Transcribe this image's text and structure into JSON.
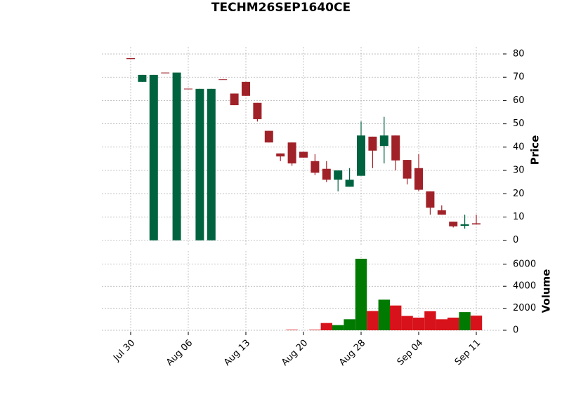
{
  "chart_data": {
    "type": "candlestick",
    "title": "TECHM26SEP1640CE",
    "categories": [
      "Jul 30",
      null,
      null,
      null,
      null,
      "Aug 06",
      null,
      null,
      null,
      null,
      "Aug 13",
      null,
      null,
      null,
      null,
      "Aug 20",
      null,
      null,
      null,
      null,
      "Aug 28",
      null,
      null,
      null,
      null,
      "Sep 04",
      null,
      null,
      null,
      null,
      "Sep 11"
    ],
    "open": [
      78.2,
      68,
      0,
      72,
      0,
      65.1,
      0,
      0,
      69.1,
      63,
      68,
      59,
      47,
      37.3,
      42,
      38,
      34,
      30.7,
      26,
      23,
      27.7,
      44.5,
      40.5,
      45,
      34.5,
      31,
      21,
      12.9,
      8,
      6.2,
      7.3
    ],
    "high": [
      78.2,
      71,
      71,
      72,
      72,
      65.1,
      65,
      65,
      69.1,
      63,
      68,
      59,
      47,
      37.3,
      42,
      38,
      37,
      34,
      30,
      31,
      51,
      44.5,
      53,
      45,
      34.5,
      37,
      21,
      15,
      8,
      11,
      11
    ],
    "low": [
      77.8,
      68,
      0,
      71.8,
      0,
      64.9,
      0,
      0,
      68.9,
      58,
      62,
      51,
      42,
      34,
      32,
      35.5,
      28,
      25,
      21,
      23,
      27.7,
      31,
      33,
      30,
      24,
      21,
      11,
      11,
      5.5,
      5,
      6.8
    ],
    "close": [
      77.8,
      71,
      71,
      71.8,
      72,
      64.9,
      65,
      65,
      68.9,
      58,
      62,
      52,
      42,
      36,
      33,
      35.5,
      29,
      26,
      30,
      26,
      45,
      38.5,
      45,
      34.3,
      26.5,
      21.7,
      14,
      11,
      6,
      6.9,
      6.8
    ],
    "volume": [
      0,
      0,
      0,
      0,
      0,
      0,
      0,
      0,
      0,
      0,
      0,
      0,
      0,
      0,
      50,
      0,
      50,
      660,
      470,
      1000,
      6500,
      1750,
      2780,
      2250,
      1300,
      1150,
      1730,
      1000,
      1150,
      1650,
      1330
    ],
    "up_color": "#006340",
    "down_color": "#a02128",
    "volume_up_color": "#007a00",
    "volume_down_color": "#d8121a",
    "ylabel": "Price",
    "volume_label": "Volume",
    "ylim": [
      -2.5,
      83
    ],
    "yticks": [
      0,
      10,
      20,
      30,
      40,
      50,
      60,
      70,
      80
    ],
    "volume_ylim": [
      0,
      7200
    ],
    "volume_yticks": [
      0,
      2000,
      4000,
      6000
    ],
    "grid": true
  }
}
